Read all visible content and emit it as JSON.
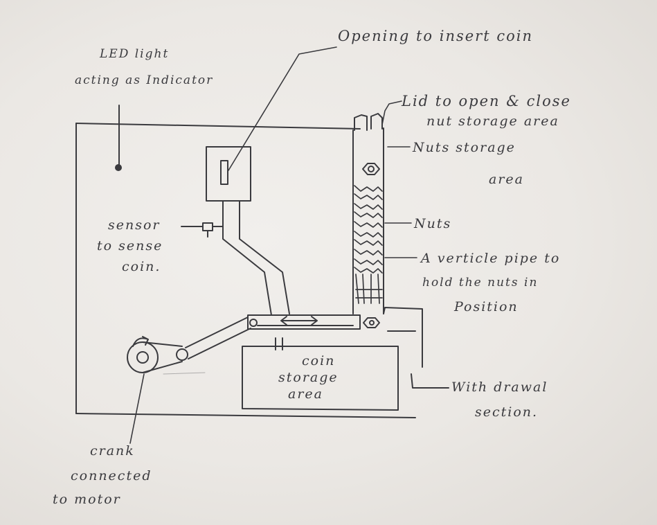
{
  "labels": {
    "led_line1": "LED light",
    "led_line2": "acting as Indicator",
    "opening": "Opening to insert coin",
    "lid_line1": "Lid to open & close",
    "lid_line2": "nut storage area",
    "nuts_storage_line1": "Nuts storage",
    "nuts_storage_line2": "area",
    "sensor_line1": "sensor",
    "sensor_line2": "to sense",
    "sensor_line3": "coin.",
    "nuts": "Nuts",
    "pipe_line1": "A verticle pipe to",
    "pipe_line2": "hold the nuts in",
    "pipe_line3": "Position",
    "coin_storage_line1": "coin",
    "coin_storage_line2": "storage",
    "coin_storage_line3": "area",
    "withdrawal_line1": "With drawal",
    "withdrawal_line2": "section.",
    "crank_line1": "crank",
    "crank_line2": "connected",
    "crank_line3": "to motor"
  },
  "colors": {
    "ink": "#3a3a3e",
    "paper": "#ece9e5"
  },
  "icons": [
    "led-dot",
    "crank-rotation-arrow",
    "slider-double-arrow"
  ]
}
